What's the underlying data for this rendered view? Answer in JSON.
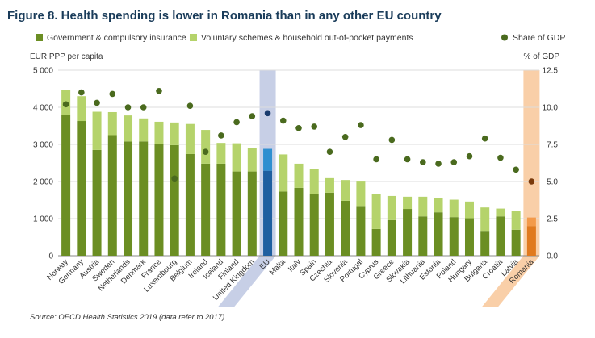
{
  "title": "Figure 8. Health spending is lower in Romania than in any other EU country",
  "source": "Source: OECD Health Statistics 2019 (data refer to 2017).",
  "legend": {
    "gov": "Government & compulsory insurance",
    "vol": "Voluntary schemes & household out-of-pocket payments",
    "gdp": "Share of GDP"
  },
  "colors": {
    "gov": "#6b8e23",
    "vol": "#b5d36b",
    "gdp_marker": "#4a6a1e",
    "eu_band": "#c7cfe6",
    "eu_gov": "#1f5fa0",
    "eu_vol": "#2f8fd0",
    "eu_marker": "#1a3c6e",
    "ro_band": "#f9cfa8",
    "ro_gov": "#e07a1f",
    "ro_vol": "#f39a4a",
    "ro_marker": "#7a3a0c",
    "grid": "#dddddd",
    "title": "#1a3c5a"
  },
  "chart_data": {
    "type": "bar",
    "stacked": true,
    "ylabel_left": "EUR PPP per capita",
    "ylabel_right": "% of GDP",
    "ylim_left": [
      0,
      5000
    ],
    "ylim_right": [
      0,
      12.5
    ],
    "yticks_left": [
      "0",
      "1 000",
      "2 000",
      "3 000",
      "4 000",
      "5 000"
    ],
    "yticks_right": [
      "0.0",
      "2.5",
      "5.0",
      "7.5",
      "10.0",
      "12.5"
    ],
    "highlight": {
      "EU": "blue",
      "Romania": "orange"
    },
    "grid": true,
    "legend_position": "top",
    "categories": [
      "Norway",
      "Germany",
      "Austria",
      "Sweden",
      "Netherlands",
      "Denmark",
      "France",
      "Luxembourg",
      "Belgium",
      "Ireland",
      "Iceland",
      "Finland",
      "United Kingdom",
      "EU",
      "Malta",
      "Italy",
      "Spain",
      "Czechia",
      "Slovenia",
      "Portugal",
      "Cyprus",
      "Greece",
      "Slovakia",
      "Lithuania",
      "Estonia",
      "Poland",
      "Hungary",
      "Bulgaria",
      "Croatia",
      "Latvia",
      "Romania"
    ],
    "series": [
      {
        "name": "Government & compulsory insurance",
        "values": [
          3800,
          3630,
          2850,
          3250,
          3080,
          3080,
          3010,
          2980,
          2740,
          2480,
          2480,
          2270,
          2270,
          2290,
          1730,
          1830,
          1670,
          1700,
          1480,
          1340,
          720,
          960,
          1260,
          1060,
          1170,
          1040,
          1010,
          670,
          1060,
          700,
          800
        ]
      },
      {
        "name": "Voluntary schemes & household out-of-pocket payments",
        "values": [
          670,
          670,
          1030,
          620,
          700,
          620,
          600,
          610,
          810,
          910,
          560,
          760,
          630,
          590,
          1000,
          650,
          670,
          390,
          560,
          680,
          950,
          650,
          330,
          530,
          390,
          470,
          450,
          630,
          210,
          510,
          230
        ]
      }
    ],
    "gdp_share": [
      10.2,
      11.0,
      10.3,
      10.9,
      10.0,
      10.0,
      11.1,
      5.2,
      10.1,
      7.0,
      8.1,
      9.0,
      9.4,
      9.6,
      9.1,
      8.6,
      8.7,
      7.0,
      8.0,
      8.8,
      6.5,
      7.8,
      6.5,
      6.3,
      6.2,
      6.3,
      6.7,
      7.9,
      6.6,
      5.8,
      5.0
    ]
  }
}
